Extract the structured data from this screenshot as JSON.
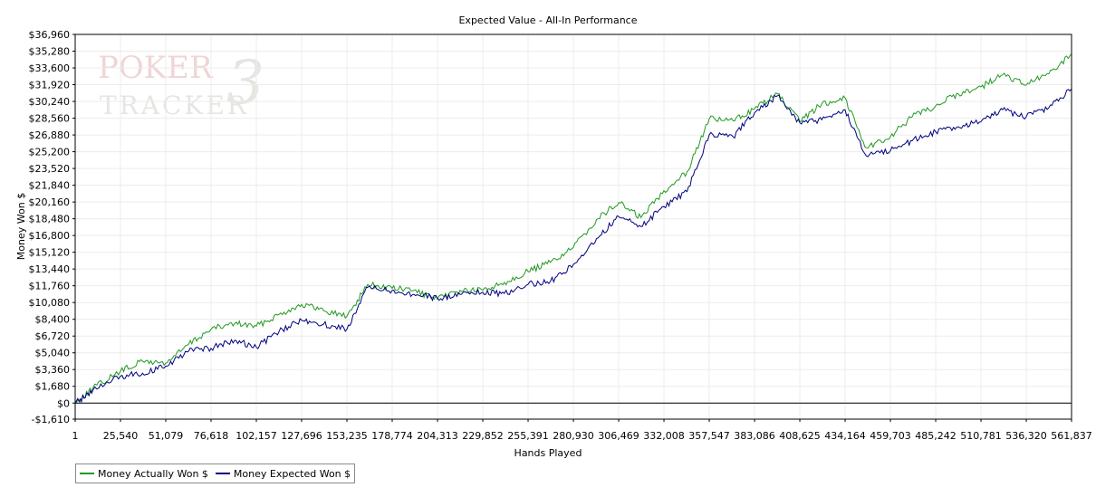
{
  "watermark": {
    "line1": "POKER",
    "line2": "TRACKER",
    "mark": "3"
  },
  "chart_data": {
    "type": "line",
    "title": "Expected Value - All-In Performance",
    "xlabel": "Hands Played",
    "ylabel": "Money Won $",
    "xlim": [
      1,
      561837
    ],
    "ylim": [
      -1610,
      36960
    ],
    "x_ticks": [
      1,
      25540,
      51079,
      76618,
      102157,
      127696,
      153235,
      178774,
      204313,
      229852,
      255391,
      280930,
      306469,
      332008,
      357547,
      383086,
      408625,
      434164,
      459703,
      485242,
      510781,
      536320,
      561837
    ],
    "x_tick_labels": [
      "1",
      "25,540",
      "51,079",
      "76,618",
      "102,157",
      "127,696",
      "153,235",
      "178,774",
      "204,313",
      "229,852",
      "255,391",
      "280,930",
      "306,469",
      "332,008",
      "357,547",
      "383,086",
      "408,625",
      "434,164",
      "459,703",
      "485,242",
      "510,781",
      "536,320",
      "561,837"
    ],
    "y_ticks": [
      -1610,
      0,
      1680,
      3360,
      5040,
      6720,
      8400,
      10080,
      11760,
      13440,
      15120,
      16800,
      18480,
      20160,
      21840,
      23520,
      25200,
      26880,
      28560,
      30240,
      31920,
      33600,
      35280,
      36960
    ],
    "y_tick_labels": [
      "-$1,610",
      "$0",
      "$1,680",
      "$3,360",
      "$5,040",
      "$6,720",
      "$8,400",
      "$10,080",
      "$11,760",
      "$13,440",
      "$15,120",
      "$16,800",
      "$18,480",
      "$20,160",
      "$21,840",
      "$23,520",
      "$25,200",
      "$26,880",
      "$28,560",
      "$30,240",
      "$31,920",
      "$33,600",
      "$35,280",
      "$36,960"
    ],
    "grid": true,
    "legend": "bottom-left",
    "x": [
      1,
      10000,
      25540,
      38000,
      51079,
      64000,
      76618,
      90000,
      102157,
      115000,
      127696,
      140000,
      153235,
      165000,
      178774,
      191000,
      204313,
      217000,
      229852,
      242000,
      255391,
      268000,
      280930,
      294000,
      306469,
      319000,
      332008,
      345000,
      357547,
      371000,
      383086,
      396000,
      408625,
      421000,
      434164,
      446000,
      459703,
      472000,
      485242,
      498000,
      510781,
      523000,
      536320,
      549000,
      561837
    ],
    "series": [
      {
        "name": "Money Actually Won $",
        "color": "#229922",
        "values": [
          0,
          1500,
          3200,
          4200,
          4000,
          5900,
          7400,
          8000,
          7700,
          8900,
          9900,
          9300,
          8700,
          11900,
          11500,
          11300,
          10400,
          11300,
          11300,
          12100,
          13200,
          14100,
          15600,
          18400,
          20100,
          18600,
          21300,
          23200,
          28500,
          28300,
          29500,
          31000,
          28200,
          30000,
          30600,
          25600,
          26700,
          28700,
          29800,
          31000,
          31700,
          32900,
          31900,
          33000,
          35000
        ]
      },
      {
        "name": "Money Expected Won $",
        "color": "#000080",
        "values": [
          0,
          1300,
          2700,
          3000,
          3700,
          5200,
          5500,
          6300,
          5600,
          7200,
          8300,
          7900,
          7400,
          11600,
          11300,
          10900,
          10500,
          10900,
          11100,
          11000,
          11900,
          12200,
          13900,
          16500,
          18700,
          17700,
          19700,
          21200,
          26900,
          26700,
          29100,
          30800,
          28100,
          28400,
          29400,
          24800,
          25300,
          26300,
          27200,
          27700,
          28200,
          29400,
          28700,
          29600,
          31500
        ]
      }
    ]
  }
}
